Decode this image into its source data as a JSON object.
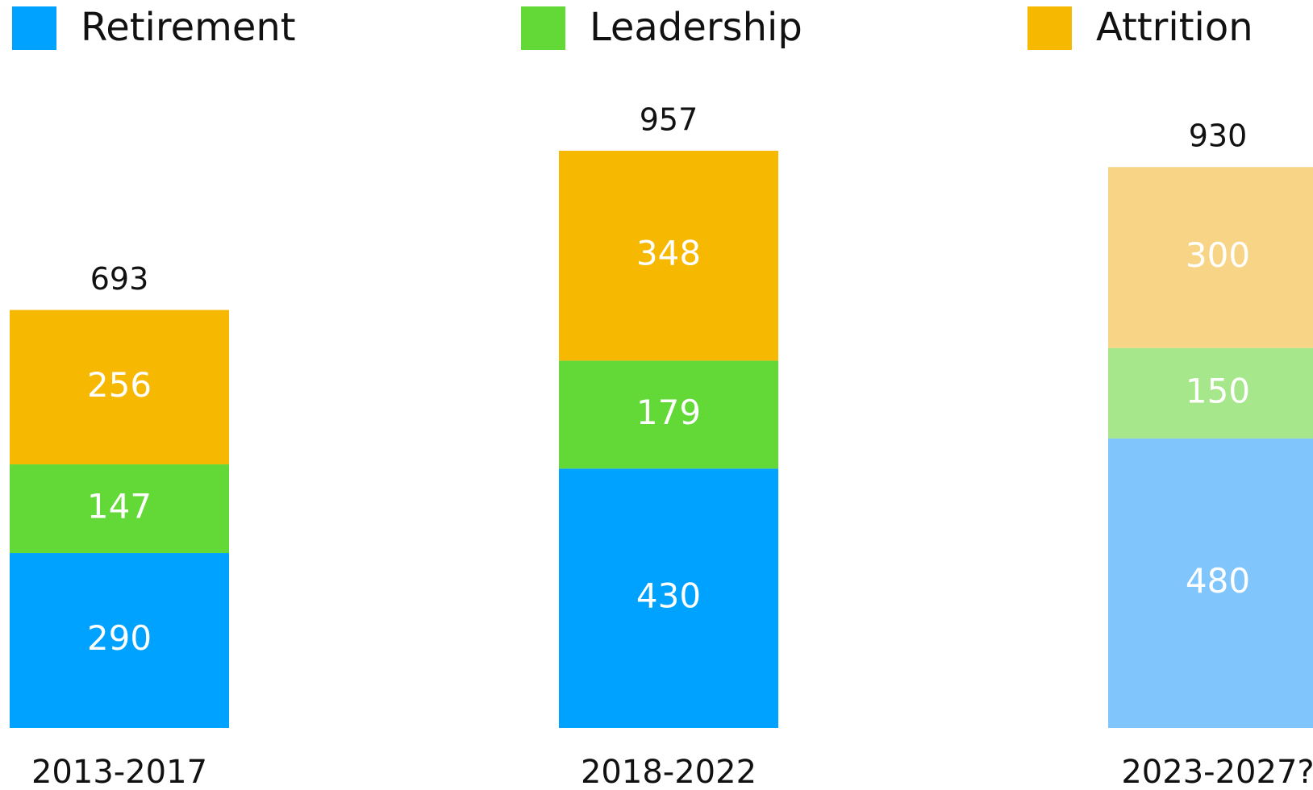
{
  "chart_data": {
    "type": "stacked_bar",
    "categories": [
      "2013-2017",
      "2018-2022",
      "2023-2027?"
    ],
    "series": [
      {
        "name": "Retirement",
        "color": "#00a2ff",
        "colors": [
          "#00a2ff",
          "#00a2ff",
          "#80c6fc"
        ],
        "values": [
          290,
          430,
          480
        ]
      },
      {
        "name": "Leadership",
        "color": "#62d937",
        "colors": [
          "#62d937",
          "#62d937",
          "#a7e78c"
        ],
        "values": [
          147,
          179,
          150
        ]
      },
      {
        "name": "Attrition",
        "color": "#f6b800",
        "colors": [
          "#f6b800",
          "#f6b800",
          "#f8d586"
        ],
        "values": [
          256,
          348,
          300
        ]
      }
    ],
    "totals": [
      693,
      957,
      930
    ],
    "legend": "top"
  }
}
